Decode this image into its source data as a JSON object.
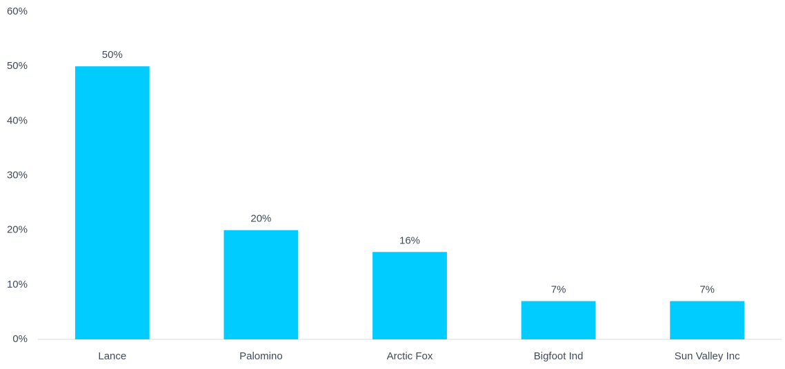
{
  "chart_data": {
    "type": "bar",
    "categories": [
      "Lance",
      "Palomino",
      "Arctic Fox",
      "Bigfoot Ind",
      "Sun Valley Inc"
    ],
    "values": [
      50,
      20,
      16,
      7,
      7
    ],
    "value_labels": [
      "50%",
      "20%",
      "16%",
      "7%",
      "7%"
    ],
    "color": "#00ccff",
    "ylim": [
      0,
      60
    ],
    "yticks": [
      {
        "value": 0,
        "label": "0%"
      },
      {
        "value": 10,
        "label": "10%"
      },
      {
        "value": 20,
        "label": "20%"
      },
      {
        "value": 30,
        "label": "30%"
      },
      {
        "value": 40,
        "label": "40%"
      },
      {
        "value": 50,
        "label": "50%"
      },
      {
        "value": 60,
        "label": "60%"
      }
    ],
    "grid": false
  }
}
